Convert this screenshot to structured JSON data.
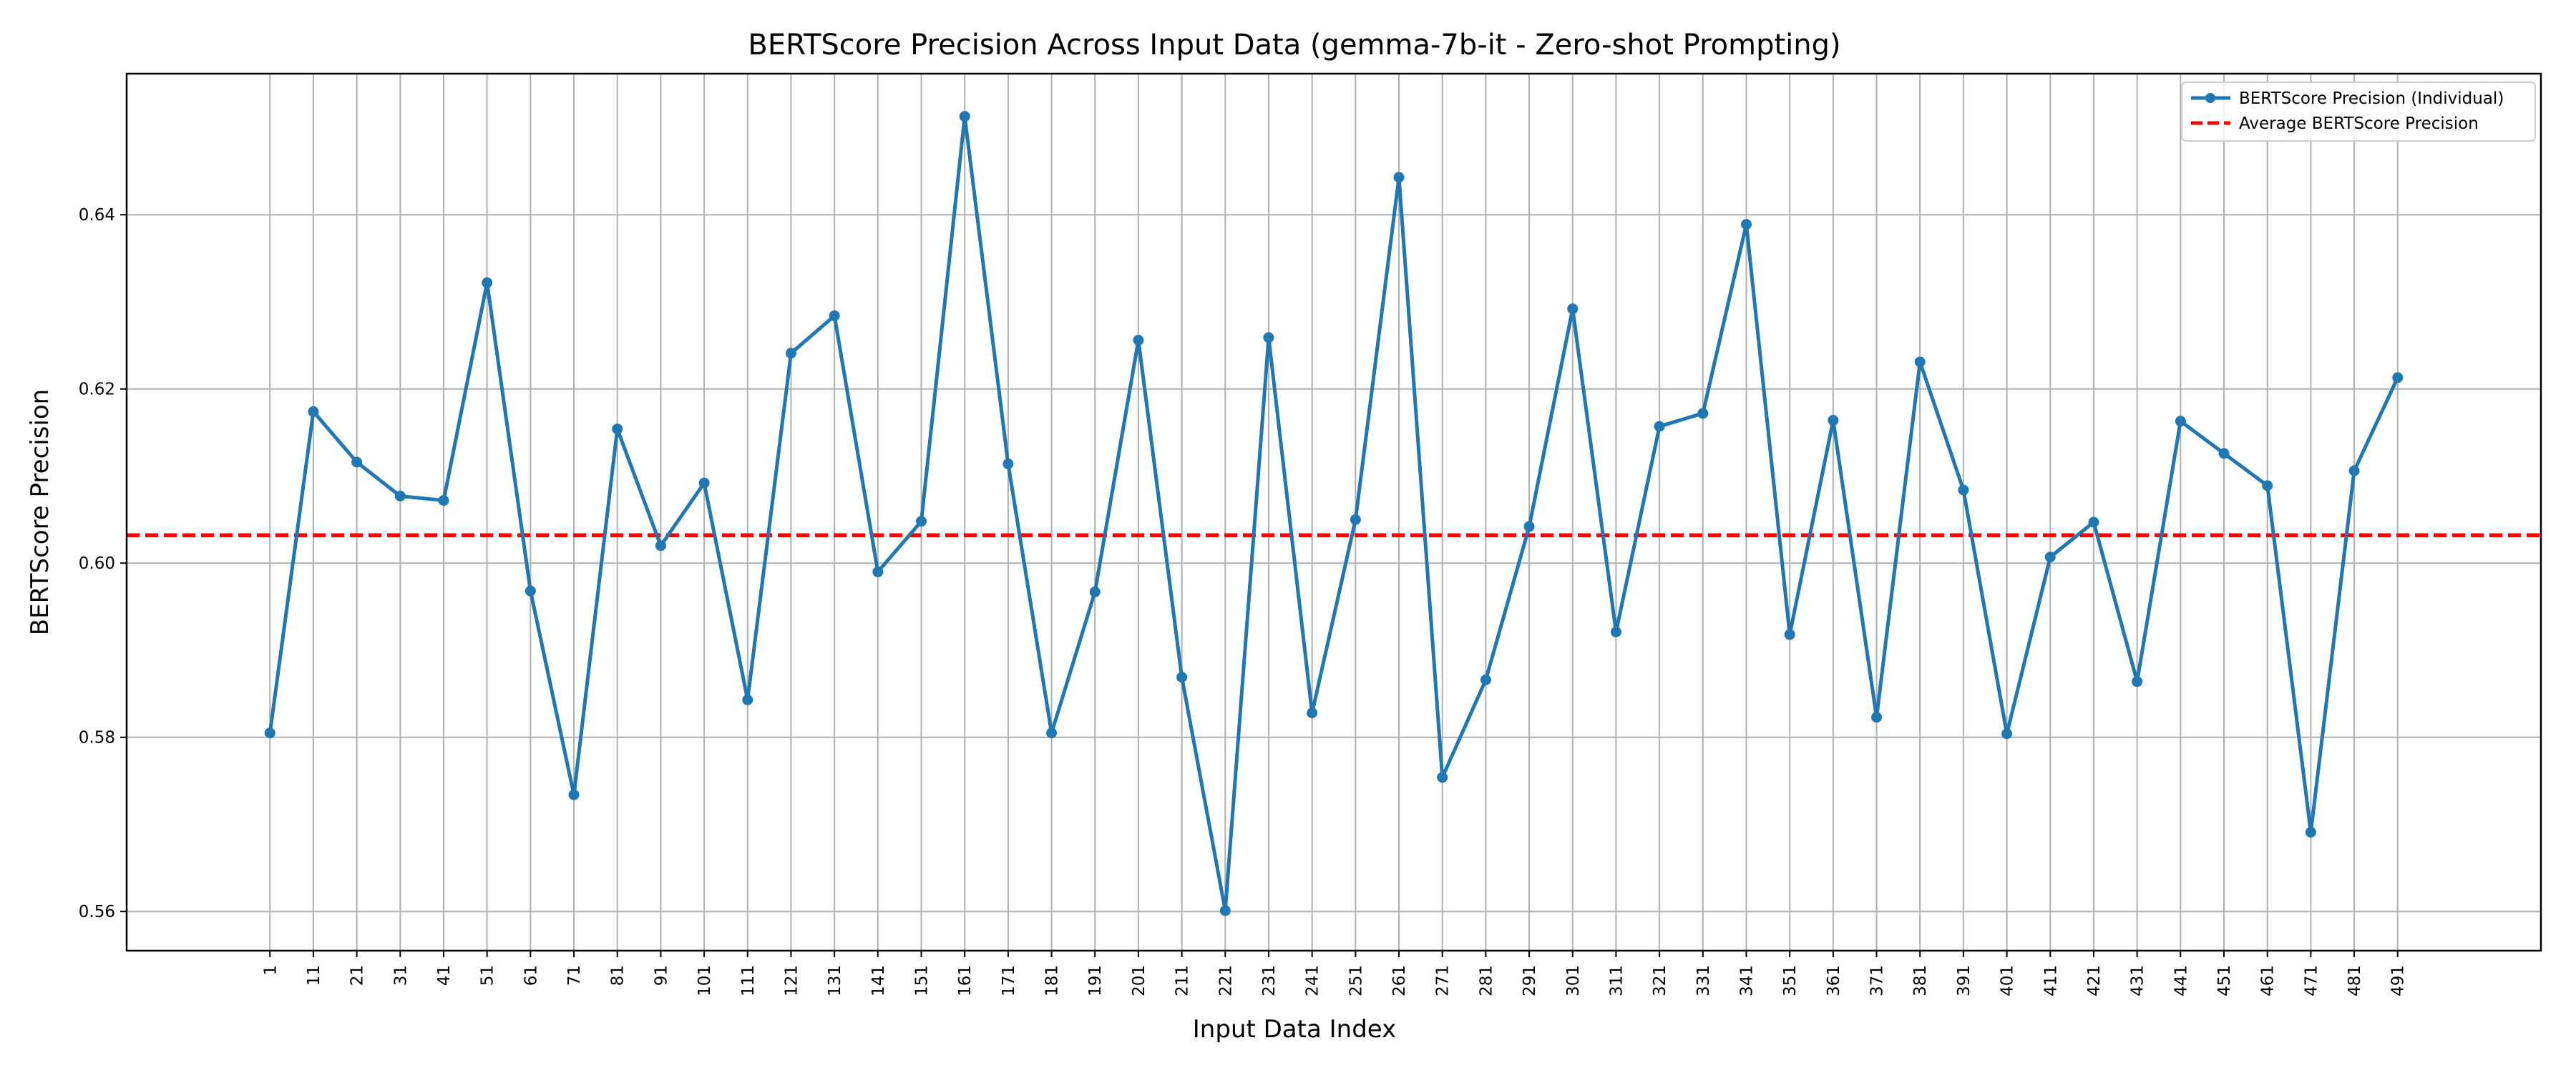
{
  "chart_data": {
    "type": "line",
    "title": "BERTScore Precision Across Input Data (gemma-7b-it - Zero-shot Prompting)",
    "xlabel": "Input Data Index",
    "ylabel": "BERTScore Precision",
    "x": [
      1,
      11,
      21,
      31,
      41,
      51,
      61,
      71,
      81,
      91,
      101,
      111,
      121,
      131,
      141,
      151,
      161,
      171,
      181,
      191,
      201,
      211,
      221,
      231,
      241,
      251,
      261,
      271,
      281,
      291,
      301,
      311,
      321,
      331,
      341,
      351,
      361,
      371,
      381,
      391,
      401,
      411,
      421,
      431,
      441,
      451,
      461,
      471,
      481,
      491
    ],
    "ylim": [
      0.5555,
      0.6562
    ],
    "yticks": [
      0.56,
      0.58,
      0.6,
      0.62,
      0.64
    ],
    "ytick_labels": [
      "0.56",
      "0.58",
      "0.60",
      "0.62",
      "0.64"
    ],
    "grid": true,
    "legend_position": "top-right",
    "series": [
      {
        "name": "BERTScore Precision (Individual)",
        "color": "#1f77b4",
        "style": "solid-with-markers",
        "values": [
          0.5805,
          0.6174,
          0.6116,
          0.6077,
          0.6072,
          0.6322,
          0.5968,
          0.5734,
          0.6154,
          0.602,
          0.6092,
          0.5843,
          0.6241,
          0.6284,
          0.599,
          0.6048,
          0.6513,
          0.6114,
          0.5805,
          0.5967,
          0.6256,
          0.5869,
          0.5601,
          0.6259,
          0.5828,
          0.605,
          0.6443,
          0.5754,
          0.5866,
          0.6042,
          0.6292,
          0.5921,
          0.6157,
          0.6172,
          0.6389,
          0.5918,
          0.6164,
          0.5823,
          0.6231,
          0.6084,
          0.5804,
          0.6007,
          0.6047,
          0.5864,
          0.6163,
          0.6126,
          0.6089,
          0.5691,
          0.6106,
          0.6213
        ]
      },
      {
        "name": "Average BERTScore Precision",
        "color": "#ff0000",
        "style": "dashed",
        "value": 0.6032
      }
    ]
  }
}
